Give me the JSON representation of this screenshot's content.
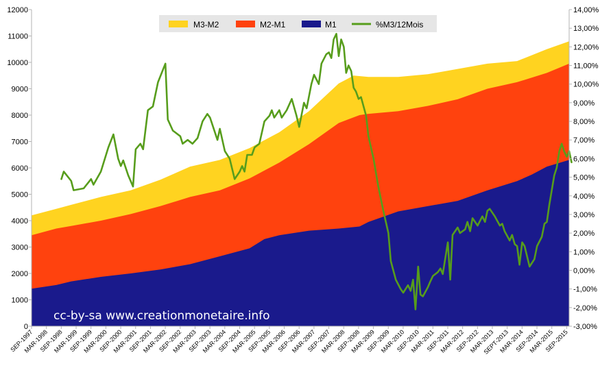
{
  "chart_data": {
    "type": "area",
    "stacked": true,
    "title": "",
    "watermark": "cc-by-sa  www.creationmonetaire.info",
    "left_axis": {
      "ylim": [
        0,
        12000
      ],
      "ticks": [
        "0",
        "1000",
        "2000",
        "3000",
        "4000",
        "5000",
        "6000",
        "7000",
        "8000",
        "9000",
        "10000",
        "11000",
        "12000"
      ]
    },
    "right_axis": {
      "ylim": [
        -3,
        14
      ],
      "ticks": [
        "-3,00%",
        "-2,00%",
        "-1,00%",
        "0,00%",
        "1,00%",
        "2,00%",
        "3,00%",
        "4,00%",
        "5,00%",
        "6,00%",
        "7,00%",
        "8,00%",
        "9,00%",
        "10,00%",
        "11,00%",
        "12,00%",
        "13,00%",
        "14,00%"
      ]
    },
    "x_range": [
      1997.667,
      2015.75
    ],
    "x_tick_labels": [
      "SEP-1997",
      "MAR-1998",
      "SEP-1998",
      "MAR-1999",
      "SEP-1999",
      "MAR-2000",
      "SEP-2000",
      "MAR-2001",
      "SEP-2001",
      "MAR-2002",
      "SEP-2002",
      "MAR-2003",
      "SEP-2003",
      "MAR-2004",
      "SEP-2004",
      "MAR-2005",
      "SEP-2005",
      "MAR-2006",
      "SEP-2006",
      "MAR-2007",
      "SEP-2007",
      "MAR-2008",
      "SEP-2008",
      "MAR-2009",
      "SEP-2009",
      "MAR-2010",
      "SEP-2010",
      "MAR-2011",
      "SEP-2011",
      "MAR-2012",
      "SEP-2012",
      "MAR-2013",
      "SEPT-2013",
      "MAR-2014",
      "SEP-2014",
      "MAR-2015",
      "SEP-2015"
    ],
    "legend": {
      "placement": "top-center",
      "entries": [
        {
          "name": "M3-M2",
          "color": "#ffd320"
        },
        {
          "name": "M2-M1",
          "color": "#ff420e"
        },
        {
          "name": "M1",
          "color": "#1a1a8c"
        },
        {
          "name": "%M3/12Mois",
          "color": "#579d1c"
        }
      ]
    },
    "series": [
      {
        "name": "M1",
        "kind": "area",
        "axis": "left",
        "color": "#1a1a8c",
        "points": [
          [
            1997.67,
            1420
          ],
          [
            1998.5,
            1560
          ],
          [
            1999.0,
            1700
          ],
          [
            2000.0,
            1870
          ],
          [
            2001.0,
            2000
          ],
          [
            2002.0,
            2150
          ],
          [
            2003.0,
            2350
          ],
          [
            2004.0,
            2650
          ],
          [
            2005.0,
            2950
          ],
          [
            2005.5,
            3300
          ],
          [
            2006.0,
            3450
          ],
          [
            2007.0,
            3620
          ],
          [
            2008.0,
            3700
          ],
          [
            2008.7,
            3780
          ],
          [
            2009.0,
            3950
          ],
          [
            2010.0,
            4350
          ],
          [
            2011.0,
            4550
          ],
          [
            2012.0,
            4750
          ],
          [
            2013.0,
            5150
          ],
          [
            2014.0,
            5500
          ],
          [
            2014.5,
            5750
          ],
          [
            2015.0,
            6050
          ],
          [
            2015.75,
            6300
          ]
        ]
      },
      {
        "name": "M2-M1",
        "kind": "area",
        "axis": "left",
        "color": "#ff420e",
        "stack_total_label": "M2",
        "points": [
          [
            1997.67,
            3450
          ],
          [
            1998.5,
            3700
          ],
          [
            1999.0,
            3800
          ],
          [
            2000.0,
            4000
          ],
          [
            2001.0,
            4250
          ],
          [
            2002.0,
            4550
          ],
          [
            2003.0,
            4900
          ],
          [
            2004.0,
            5150
          ],
          [
            2005.0,
            5600
          ],
          [
            2006.0,
            6200
          ],
          [
            2007.0,
            6900
          ],
          [
            2008.0,
            7700
          ],
          [
            2008.7,
            8000
          ],
          [
            2009.0,
            8050
          ],
          [
            2010.0,
            8150
          ],
          [
            2011.0,
            8350
          ],
          [
            2012.0,
            8600
          ],
          [
            2013.0,
            9000
          ],
          [
            2014.0,
            9250
          ],
          [
            2015.0,
            9600
          ],
          [
            2015.75,
            9950
          ]
        ]
      },
      {
        "name": "M3-M2",
        "kind": "area",
        "axis": "left",
        "color": "#ffd320",
        "stack_total_label": "M3",
        "points": [
          [
            1997.67,
            4200
          ],
          [
            1998.5,
            4450
          ],
          [
            1999.0,
            4600
          ],
          [
            2000.0,
            4900
          ],
          [
            2001.0,
            5150
          ],
          [
            2002.0,
            5550
          ],
          [
            2003.0,
            6050
          ],
          [
            2004.0,
            6300
          ],
          [
            2005.0,
            6750
          ],
          [
            2006.0,
            7350
          ],
          [
            2007.0,
            8150
          ],
          [
            2008.0,
            9200
          ],
          [
            2008.5,
            9500
          ],
          [
            2009.0,
            9450
          ],
          [
            2010.0,
            9450
          ],
          [
            2010.5,
            9500
          ],
          [
            2011.0,
            9550
          ],
          [
            2012.0,
            9750
          ],
          [
            2013.0,
            9950
          ],
          [
            2014.0,
            10050
          ],
          [
            2015.0,
            10500
          ],
          [
            2015.75,
            10800
          ]
        ]
      },
      {
        "name": "%M3/12Mois",
        "kind": "line",
        "axis": "right",
        "color": "#579d1c",
        "points": [
          [
            1998.67,
            4.9
          ],
          [
            1998.75,
            5.3
          ],
          [
            1999.0,
            4.8
          ],
          [
            1999.08,
            4.3
          ],
          [
            1999.42,
            4.4
          ],
          [
            1999.67,
            4.9
          ],
          [
            1999.75,
            4.6
          ],
          [
            2000.0,
            5.3
          ],
          [
            2000.25,
            6.6
          ],
          [
            2000.42,
            7.3
          ],
          [
            2000.58,
            6.0
          ],
          [
            2000.67,
            5.6
          ],
          [
            2000.75,
            5.9
          ],
          [
            2000.92,
            5.1
          ],
          [
            2001.08,
            4.5
          ],
          [
            2001.17,
            6.5
          ],
          [
            2001.33,
            6.8
          ],
          [
            2001.42,
            6.5
          ],
          [
            2001.58,
            8.6
          ],
          [
            2001.75,
            8.8
          ],
          [
            2001.92,
            10.1
          ],
          [
            2002.17,
            11.1
          ],
          [
            2002.25,
            8.1
          ],
          [
            2002.42,
            7.5
          ],
          [
            2002.67,
            7.2
          ],
          [
            2002.75,
            6.8
          ],
          [
            2002.92,
            7.0
          ],
          [
            2003.08,
            6.8
          ],
          [
            2003.25,
            7.1
          ],
          [
            2003.42,
            8.0
          ],
          [
            2003.58,
            8.4
          ],
          [
            2003.67,
            8.2
          ],
          [
            2003.92,
            7.0
          ],
          [
            2004.0,
            7.6
          ],
          [
            2004.17,
            6.4
          ],
          [
            2004.33,
            6.0
          ],
          [
            2004.5,
            4.9
          ],
          [
            2004.67,
            5.3
          ],
          [
            2004.75,
            5.6
          ],
          [
            2004.83,
            5.3
          ],
          [
            2004.92,
            6.2
          ],
          [
            2005.08,
            6.2
          ],
          [
            2005.17,
            6.6
          ],
          [
            2005.33,
            6.8
          ],
          [
            2005.5,
            8.0
          ],
          [
            2005.67,
            8.3
          ],
          [
            2005.75,
            8.6
          ],
          [
            2005.83,
            8.2
          ],
          [
            2006.0,
            8.6
          ],
          [
            2006.08,
            8.2
          ],
          [
            2006.25,
            8.6
          ],
          [
            2006.42,
            9.2
          ],
          [
            2006.58,
            8.3
          ],
          [
            2006.67,
            7.7
          ],
          [
            2006.83,
            9.0
          ],
          [
            2006.92,
            8.7
          ],
          [
            2007.08,
            10.0
          ],
          [
            2007.17,
            10.5
          ],
          [
            2007.33,
            10.0
          ],
          [
            2007.42,
            11.1
          ],
          [
            2007.58,
            11.6
          ],
          [
            2007.67,
            11.7
          ],
          [
            2007.75,
            11.4
          ],
          [
            2007.83,
            12.4
          ],
          [
            2007.92,
            12.7
          ],
          [
            2008.0,
            11.5
          ],
          [
            2008.08,
            12.4
          ],
          [
            2008.17,
            12.0
          ],
          [
            2008.25,
            10.6
          ],
          [
            2008.33,
            11.0
          ],
          [
            2008.42,
            10.7
          ],
          [
            2008.5,
            9.8
          ],
          [
            2008.58,
            9.6
          ],
          [
            2008.67,
            9.2
          ],
          [
            2008.75,
            9.3
          ],
          [
            2008.92,
            8.3
          ],
          [
            2009.0,
            7.2
          ],
          [
            2009.17,
            6.0
          ],
          [
            2009.33,
            4.5
          ],
          [
            2009.5,
            3.2
          ],
          [
            2009.67,
            2.0
          ],
          [
            2009.75,
            0.5
          ],
          [
            2009.92,
            -0.5
          ],
          [
            2010.08,
            -1.0
          ],
          [
            2010.17,
            -1.2
          ],
          [
            2010.33,
            -0.8
          ],
          [
            2010.42,
            -1.1
          ],
          [
            2010.5,
            -0.5
          ],
          [
            2010.58,
            -2.1
          ],
          [
            2010.67,
            0.2
          ],
          [
            2010.75,
            -1.3
          ],
          [
            2010.83,
            -1.4
          ],
          [
            2011.0,
            -0.9
          ],
          [
            2011.08,
            -0.6
          ],
          [
            2011.17,
            -0.3
          ],
          [
            2011.33,
            -0.1
          ],
          [
            2011.42,
            0.1
          ],
          [
            2011.5,
            -0.2
          ],
          [
            2011.67,
            1.5
          ],
          [
            2011.75,
            -0.5
          ],
          [
            2011.83,
            1.9
          ],
          [
            2012.0,
            2.3
          ],
          [
            2012.08,
            2.0
          ],
          [
            2012.25,
            2.2
          ],
          [
            2012.33,
            2.6
          ],
          [
            2012.42,
            2.1
          ],
          [
            2012.5,
            2.8
          ],
          [
            2012.67,
            2.4
          ],
          [
            2012.83,
            2.9
          ],
          [
            2012.92,
            2.6
          ],
          [
            2013.0,
            3.2
          ],
          [
            2013.08,
            3.3
          ],
          [
            2013.25,
            2.9
          ],
          [
            2013.42,
            2.4
          ],
          [
            2013.5,
            2.5
          ],
          [
            2013.58,
            2.1
          ],
          [
            2013.75,
            1.6
          ],
          [
            2013.83,
            1.9
          ],
          [
            2013.92,
            1.4
          ],
          [
            2014.0,
            1.3
          ],
          [
            2014.08,
            0.3
          ],
          [
            2014.17,
            1.5
          ],
          [
            2014.25,
            1.3
          ],
          [
            2014.42,
            0.2
          ],
          [
            2014.58,
            0.6
          ],
          [
            2014.67,
            1.3
          ],
          [
            2014.83,
            1.8
          ],
          [
            2014.92,
            2.5
          ],
          [
            2015.0,
            2.6
          ],
          [
            2015.08,
            3.5
          ],
          [
            2015.25,
            5.1
          ],
          [
            2015.33,
            5.5
          ],
          [
            2015.42,
            6.4
          ],
          [
            2015.5,
            6.8
          ],
          [
            2015.58,
            6.4
          ],
          [
            2015.67,
            6.1
          ],
          [
            2015.75,
            6.4
          ],
          [
            2015.83,
            5.8
          ]
        ]
      }
    ]
  }
}
